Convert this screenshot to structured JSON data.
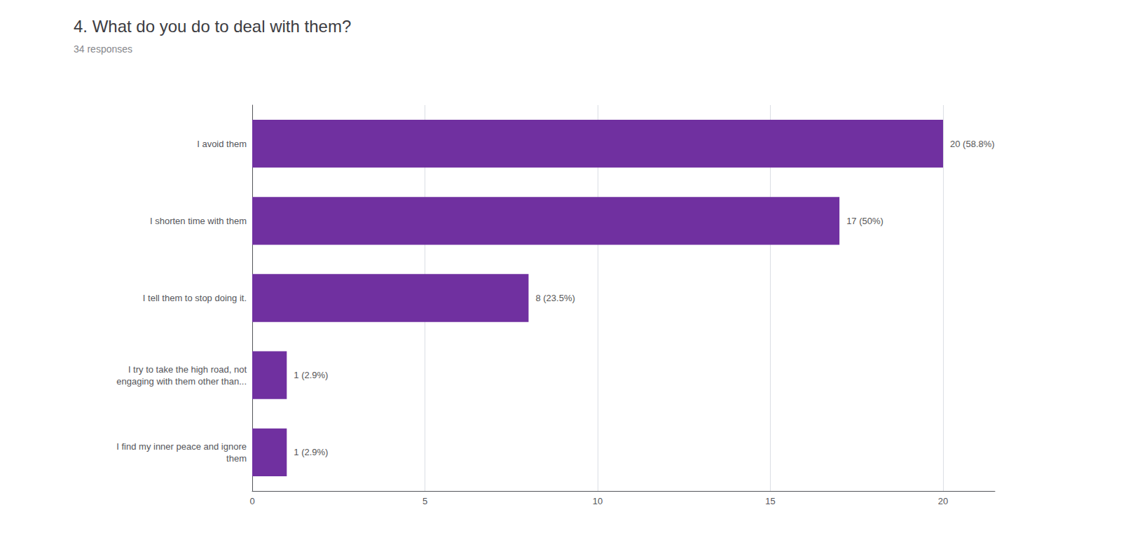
{
  "chart_data": {
    "type": "bar",
    "orientation": "horizontal",
    "title": "4. What do you do to deal with them?",
    "subtitle": "34 responses",
    "categories": [
      "I avoid them",
      "I shorten time with them",
      "I tell them to stop doing it.",
      "I try to take the high road, not\nengaging with them other than...",
      "I find my inner peace and ignore\nthem"
    ],
    "values": [
      20,
      17,
      8,
      1,
      1
    ],
    "value_labels": [
      "20 (58.8%)",
      "17 (50%)",
      "8 (23.5%)",
      "1 (2.9%)",
      "1 (2.9%)"
    ],
    "data_labels": true,
    "color": "#7030a0",
    "xlim": [
      0,
      21.5
    ],
    "xticks": [
      0,
      5,
      10,
      15,
      20
    ],
    "grid": true
  }
}
